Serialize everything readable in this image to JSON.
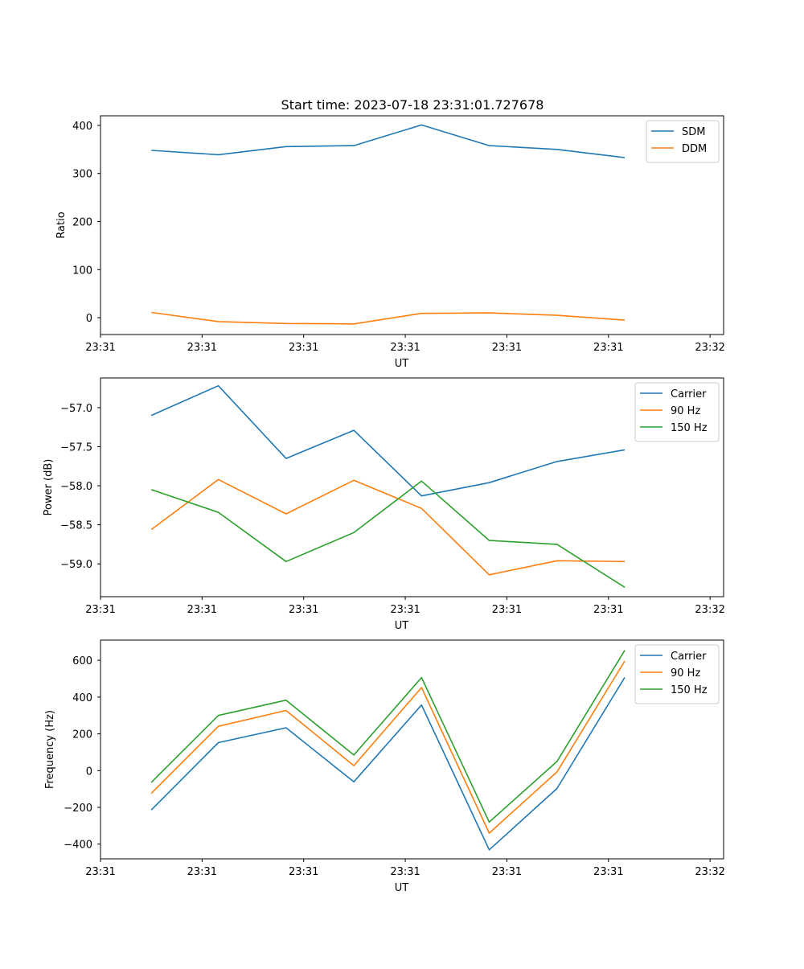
{
  "chart_data": [
    {
      "type": "line",
      "title": "Start time: 2023-07-18 23:31:01.727678",
      "xlabel": "UT",
      "ylabel": "Ratio",
      "xlim": [
        0,
        9.2
      ],
      "ylim": [
        -35,
        420
      ],
      "x": [
        0.75,
        1.74,
        2.74,
        3.74,
        4.74,
        5.74,
        6.74,
        7.74
      ],
      "xticks": [
        0,
        1.5,
        3,
        4.5,
        6,
        7.5,
        9
      ],
      "xtick_labels": [
        "23:31",
        "23:31",
        "23:31",
        "23:31",
        "23:31",
        "23:31",
        "23:32"
      ],
      "yticks": [
        0,
        100,
        200,
        300,
        400
      ],
      "ytick_labels": [
        "0",
        "100",
        "200",
        "300",
        "400"
      ],
      "legend": "top-right",
      "series": [
        {
          "name": "SDM",
          "color": "#1f77b4",
          "values": [
            348,
            339,
            356,
            358,
            401,
            358,
            350,
            333
          ]
        },
        {
          "name": "DDM",
          "color": "#ff7f0e",
          "values": [
            11,
            -8,
            -12,
            -13,
            9,
            10,
            5,
            -5
          ]
        }
      ]
    },
    {
      "type": "line",
      "title": "",
      "xlabel": "UT",
      "ylabel": "Power (dB)",
      "xlim": [
        0,
        9.2
      ],
      "ylim": [
        -59.42,
        -56.62
      ],
      "x": [
        0.75,
        1.74,
        2.74,
        3.74,
        4.74,
        5.74,
        6.74,
        7.74
      ],
      "xticks": [
        0,
        1.5,
        3,
        4.5,
        6,
        7.5,
        9
      ],
      "xtick_labels": [
        "23:31",
        "23:31",
        "23:31",
        "23:31",
        "23:31",
        "23:31",
        "23:32"
      ],
      "yticks": [
        -57.0,
        -57.5,
        -58.0,
        -58.5,
        -59.0
      ],
      "ytick_labels": [
        "−57.0",
        "−57.5",
        "−58.0",
        "−58.5",
        "−59.0"
      ],
      "legend": "top-right",
      "series": [
        {
          "name": "Carrier",
          "color": "#1f77b4",
          "values": [
            -57.1,
            -56.72,
            -57.65,
            -57.29,
            -58.13,
            -57.96,
            -57.69,
            -57.54
          ]
        },
        {
          "name": "90 Hz",
          "color": "#ff7f0e",
          "values": [
            -58.56,
            -57.92,
            -58.36,
            -57.93,
            -58.29,
            -59.14,
            -58.96,
            -58.97
          ]
        },
        {
          "name": "150 Hz",
          "color": "#2ca02c",
          "values": [
            -58.05,
            -58.34,
            -58.97,
            -58.6,
            -57.94,
            -58.7,
            -58.75,
            -59.3
          ]
        }
      ]
    },
    {
      "type": "line",
      "title": "",
      "xlabel": "UT",
      "ylabel": "Frequency (Hz)",
      "xlim": [
        0,
        9.2
      ],
      "ylim": [
        -480,
        710
      ],
      "x": [
        0.75,
        1.74,
        2.74,
        3.74,
        4.74,
        5.74,
        6.74,
        7.74
      ],
      "xticks": [
        0,
        1.5,
        3,
        4.5,
        6,
        7.5,
        9
      ],
      "xtick_labels": [
        "23:31",
        "23:31",
        "23:31",
        "23:31",
        "23:31",
        "23:31",
        "23:32"
      ],
      "yticks": [
        -400,
        -200,
        0,
        200,
        400,
        600
      ],
      "ytick_labels": [
        "−400",
        "−200",
        "0",
        "200",
        "400",
        "600"
      ],
      "legend": "top-right",
      "series": [
        {
          "name": "Carrier",
          "color": "#1f77b4",
          "values": [
            -214,
            152,
            233,
            -61,
            357,
            -431,
            -97,
            507
          ]
        },
        {
          "name": "90 Hz",
          "color": "#ff7f0e",
          "values": [
            -124,
            241,
            327,
            27,
            452,
            -340,
            -7,
            596
          ]
        },
        {
          "name": "150 Hz",
          "color": "#2ca02c",
          "values": [
            -64,
            300,
            383,
            85,
            506,
            -280,
            50,
            654
          ]
        }
      ]
    }
  ]
}
